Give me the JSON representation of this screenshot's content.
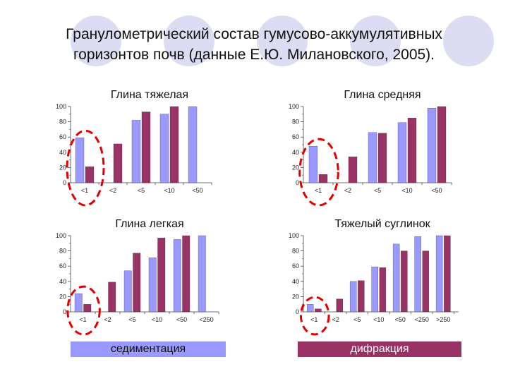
{
  "slide": {
    "title_line1": "Гранулометрический состав гумусово-аккумулятивных",
    "title_line2": "горизонтов почв (данные Е.Ю. Милановского, 2005)."
  },
  "colors": {
    "sedimentation": "#9999ff",
    "diffraction": "#993366",
    "highlight_circle": "#e00000",
    "decor_circle": "#dcdcf2"
  },
  "legend": {
    "sedimentation_label": "седиментация",
    "diffraction_label": "дифракция"
  },
  "chart_data": [
    {
      "type": "bar",
      "title": "Глина тяжелая",
      "categories": [
        "<1",
        "<2",
        "<5",
        "<10",
        "<50"
      ],
      "series": [
        {
          "values": [
            59,
            null,
            82,
            90,
            100
          ]
        },
        {
          "values": [
            21,
            51,
            93,
            100,
            null
          ]
        }
      ],
      "ylim": [
        0,
        100
      ],
      "yticks": [
        "0",
        "20",
        "40",
        "60",
        "80",
        "100"
      ],
      "highlight_category": 0
    },
    {
      "type": "bar",
      "title": "Глина средняя",
      "categories": [
        "<1",
        "<2",
        "<5",
        "<10",
        "<50"
      ],
      "series": [
        {
          "values": [
            48,
            null,
            66,
            79,
            98
          ]
        },
        {
          "values": [
            11,
            34,
            65,
            85,
            100
          ]
        }
      ],
      "ylim": [
        0,
        100
      ],
      "yticks": [
        "0",
        "20",
        "40",
        "60",
        "80",
        "100"
      ],
      "highlight_category": 0
    },
    {
      "type": "bar",
      "title": "Глина легкая",
      "categories": [
        "<1",
        "<2",
        "<5",
        "<10",
        "<50",
        "<250"
      ],
      "series": [
        {
          "values": [
            24,
            null,
            54,
            71,
            95,
            100
          ]
        },
        {
          "values": [
            10,
            39,
            77,
            97,
            100,
            null
          ]
        }
      ],
      "ylim": [
        0,
        100
      ],
      "yticks": [
        "0",
        "20",
        "40",
        "60",
        "80",
        "100"
      ],
      "highlight_category": 0
    },
    {
      "type": "bar",
      "title": "Тяжелый суглинок",
      "categories": [
        "<1",
        "<2",
        "<5",
        "<10",
        "<50",
        "<250",
        ">250"
      ],
      "series": [
        {
          "values": [
            10,
            null,
            40,
            59,
            89,
            99,
            100
          ]
        },
        {
          "values": [
            4,
            17,
            41,
            58,
            80,
            80,
            100
          ]
        }
      ],
      "ylim": [
        0,
        100
      ],
      "yticks": [
        "0",
        "20",
        "40",
        "60",
        "80",
        "100"
      ],
      "highlight_category": 0
    }
  ]
}
